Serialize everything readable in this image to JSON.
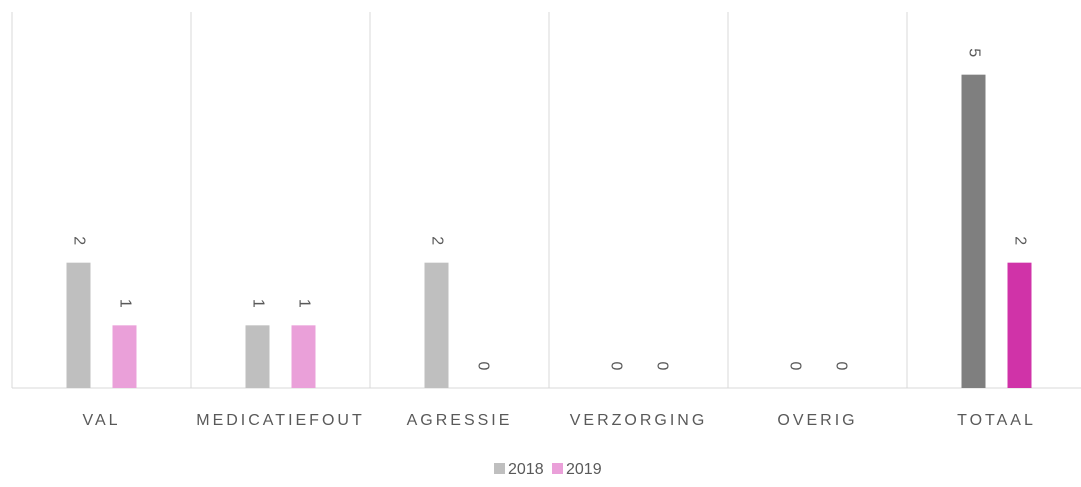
{
  "chart_data": {
    "type": "bar",
    "categories": [
      "VAL",
      "MEDICATIEFOUT",
      "AGRESSIE",
      "VERZORGING",
      "OVERIG",
      "TOTAAL"
    ],
    "series": [
      {
        "name": "2018",
        "color": "#bfbfbf",
        "colors": [
          "#bfbfbf",
          "#bfbfbf",
          "#bfbfbf",
          "#bfbfbf",
          "#bfbfbf",
          "#7f7f7f"
        ],
        "values": [
          2,
          1,
          2,
          0,
          0,
          5
        ]
      },
      {
        "name": "2019",
        "color": "#eaa0d9",
        "colors": [
          "#eaa0d9",
          "#eaa0d9",
          "#eaa0d9",
          "#eaa0d9",
          "#eaa0d9",
          "#d033a8"
        ],
        "values": [
          1,
          1,
          0,
          0,
          0,
          2
        ]
      }
    ],
    "ylim": [
      0,
      6
    ],
    "legend": "bottom"
  }
}
